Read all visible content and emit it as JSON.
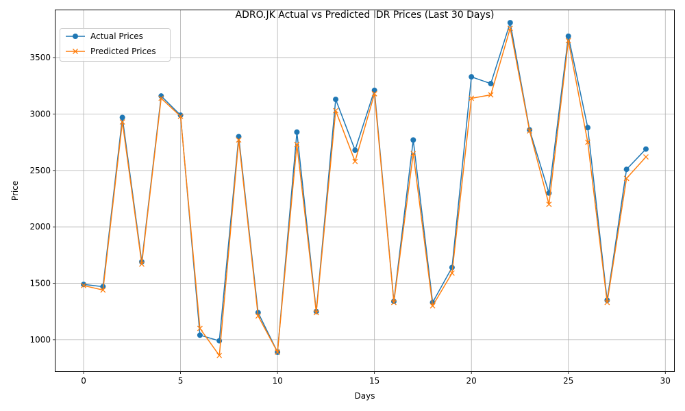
{
  "chart_data": {
    "type": "line",
    "title": "ADRO.JK Actual vs Predicted IDR Prices (Last 30 Days)",
    "xlabel": "Days",
    "ylabel": "Price",
    "xlim": [
      -1.45,
      30.45
    ],
    "ylim": [
      720,
      3920
    ],
    "x_ticks": [
      0,
      5,
      10,
      15,
      20,
      25,
      30
    ],
    "y_ticks": [
      1000,
      1500,
      2000,
      2500,
      3000,
      3500
    ],
    "grid": true,
    "legend_position": "top-left",
    "x": [
      0,
      1,
      2,
      3,
      4,
      5,
      6,
      7,
      8,
      9,
      10,
      11,
      12,
      13,
      14,
      15,
      16,
      17,
      18,
      19,
      20,
      21,
      22,
      23,
      24,
      25,
      26,
      27,
      28,
      29
    ],
    "series": [
      {
        "name": "Actual Prices",
        "color": "#1f77b4",
        "marker": "circle",
        "values": [
          1490,
          1470,
          2970,
          1690,
          3160,
          2990,
          1040,
          990,
          2800,
          1240,
          890,
          2840,
          1250,
          3130,
          2680,
          3210,
          1340,
          2770,
          1330,
          1640,
          3330,
          3270,
          3810,
          2860,
          2300,
          3690,
          2880,
          1350,
          2510,
          2690
        ]
      },
      {
        "name": "Predicted Prices",
        "color": "#ff7f0e",
        "marker": "x",
        "values": [
          1480,
          1440,
          2930,
          1670,
          3140,
          2980,
          1100,
          860,
          2770,
          1210,
          890,
          2730,
          1240,
          3030,
          2580,
          3180,
          1330,
          2650,
          1300,
          1590,
          3140,
          3170,
          3760,
          2850,
          2200,
          3650,
          2750,
          1330,
          2430,
          2620
        ]
      }
    ]
  }
}
